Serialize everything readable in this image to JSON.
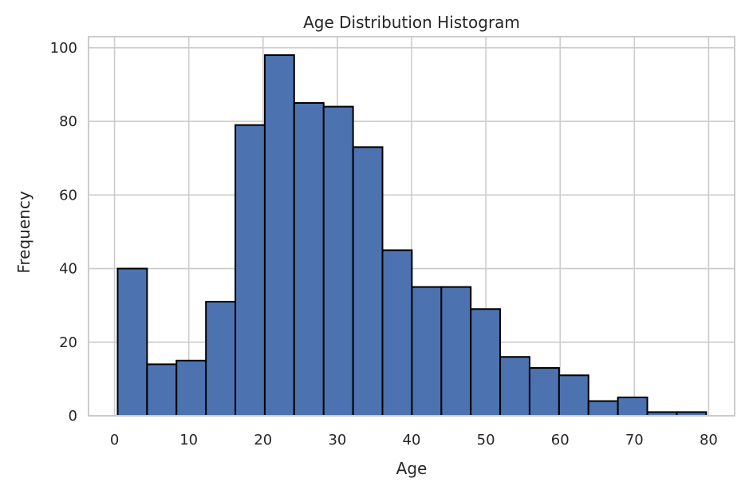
{
  "chart_data": {
    "type": "bar",
    "title": "Age Distribution Histogram",
    "xlabel": "Age",
    "ylabel": "Frequency",
    "bin_edges": [
      0.42,
      4.38,
      8.34,
      12.31,
      16.27,
      20.23,
      24.19,
      28.16,
      32.12,
      36.08,
      40.04,
      44.01,
      47.97,
      51.93,
      55.89,
      59.86,
      63.82,
      67.78,
      71.74,
      75.71,
      79.67
    ],
    "values": [
      40,
      14,
      15,
      31,
      79,
      98,
      85,
      84,
      73,
      45,
      35,
      35,
      29,
      16,
      13,
      11,
      4,
      5,
      1,
      1
    ],
    "xlim": [
      -3.5,
      83.5
    ],
    "ylim": [
      0,
      103
    ],
    "xticks": [
      0,
      10,
      20,
      30,
      40,
      50,
      60,
      70,
      80
    ],
    "yticks": [
      0,
      20,
      40,
      60,
      80,
      100
    ],
    "bar_color": "#4c72b0",
    "edge_color": "#000000",
    "grid": true
  }
}
